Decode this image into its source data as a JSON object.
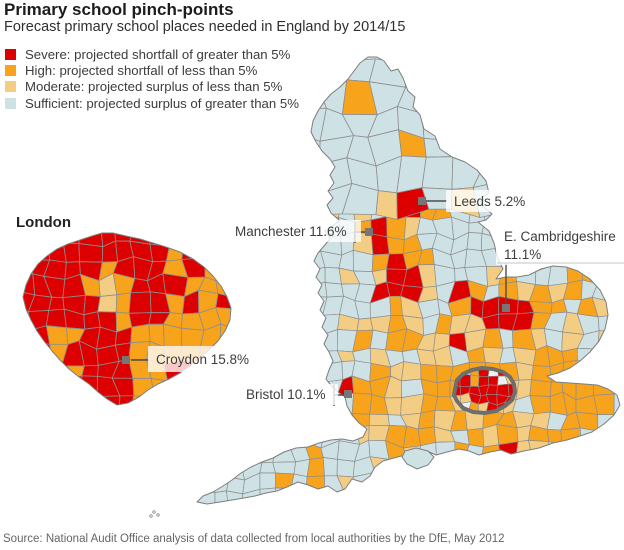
{
  "header": {
    "title": "Primary school pinch-points",
    "subtitle": "Forecast primary school places needed in England by 2014/15"
  },
  "legend": {
    "items": [
      {
        "name": "severe",
        "label": "Severe: projected shortfall of greater than 5%",
        "color": "#dd0000"
      },
      {
        "name": "high",
        "label": "High: projected shortfall of less than 5%",
        "color": "#f7a31b"
      },
      {
        "name": "moderate",
        "label": "Moderate: projected surplus of less than 5%",
        "color": "#f4cd85"
      },
      {
        "name": "sufficient",
        "label": "Sufficient: projected surplus of greater than 5%",
        "color": "#cee2e6"
      }
    ]
  },
  "map": {
    "inset_title": "London",
    "colors": {
      "severe": "#dd0000",
      "high": "#f7a31b",
      "moderate": "#f4cd85",
      "sufficient": "#cee2e6",
      "border": "#8e8e8e",
      "coast": "#7d7d7d",
      "london_outline": "#6e6e6e",
      "callout_line": "#4d4d4d",
      "marker": "#767676"
    },
    "callouts": {
      "leeds": {
        "label": "Leeds 5.2%"
      },
      "manchester": {
        "label": "Manchester 11.6%"
      },
      "e_cambridgeshire": {
        "line1": "E. Cambridgeshire",
        "line2": "11.1%"
      },
      "bristol": {
        "label": "Bristol 10.1%"
      },
      "croydon": {
        "label": "Croydon 15.8%"
      }
    },
    "data_points": [
      {
        "area": "Leeds",
        "value_pct": 5.2
      },
      {
        "area": "Manchester",
        "value_pct": 11.6
      },
      {
        "area": "E. Cambridgeshire",
        "value_pct": 11.1
      },
      {
        "area": "Bristol",
        "value_pct": 10.1
      },
      {
        "area": "Croydon",
        "value_pct": 15.8
      }
    ]
  },
  "footer": {
    "source": "Source: National Audit Office analysis of data collected from local authorities by the DfE, May 2012"
  }
}
